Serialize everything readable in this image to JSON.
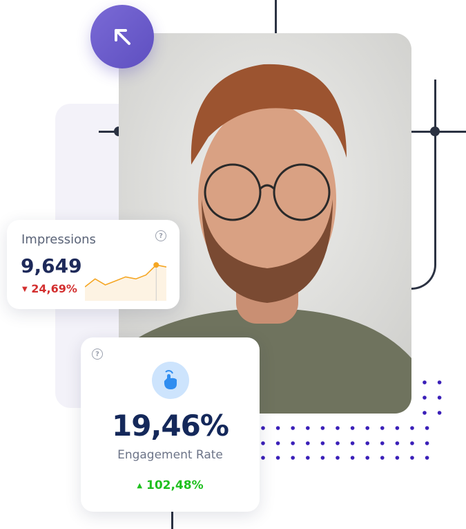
{
  "impressions": {
    "title": "Impressions",
    "value": "9,649",
    "delta": "24,69%",
    "delta_direction": "down",
    "help_icon": "question-circle-icon",
    "sparkline": [
      0.35,
      0.55,
      0.4,
      0.5,
      0.6,
      0.55,
      0.65,
      0.9,
      0.85
    ],
    "sparkline_color": "#f5a623"
  },
  "engagement": {
    "value": "19,46%",
    "label": "Engagement Rate",
    "delta": "102,48%",
    "delta_direction": "up",
    "icon": "hand-pointer-icon",
    "help_icon": "question-circle-icon"
  },
  "colors": {
    "accent": "#6d5fc9",
    "negative": "#d32f2f",
    "positive": "#1fc01f",
    "dots": "#3a1fb8"
  }
}
